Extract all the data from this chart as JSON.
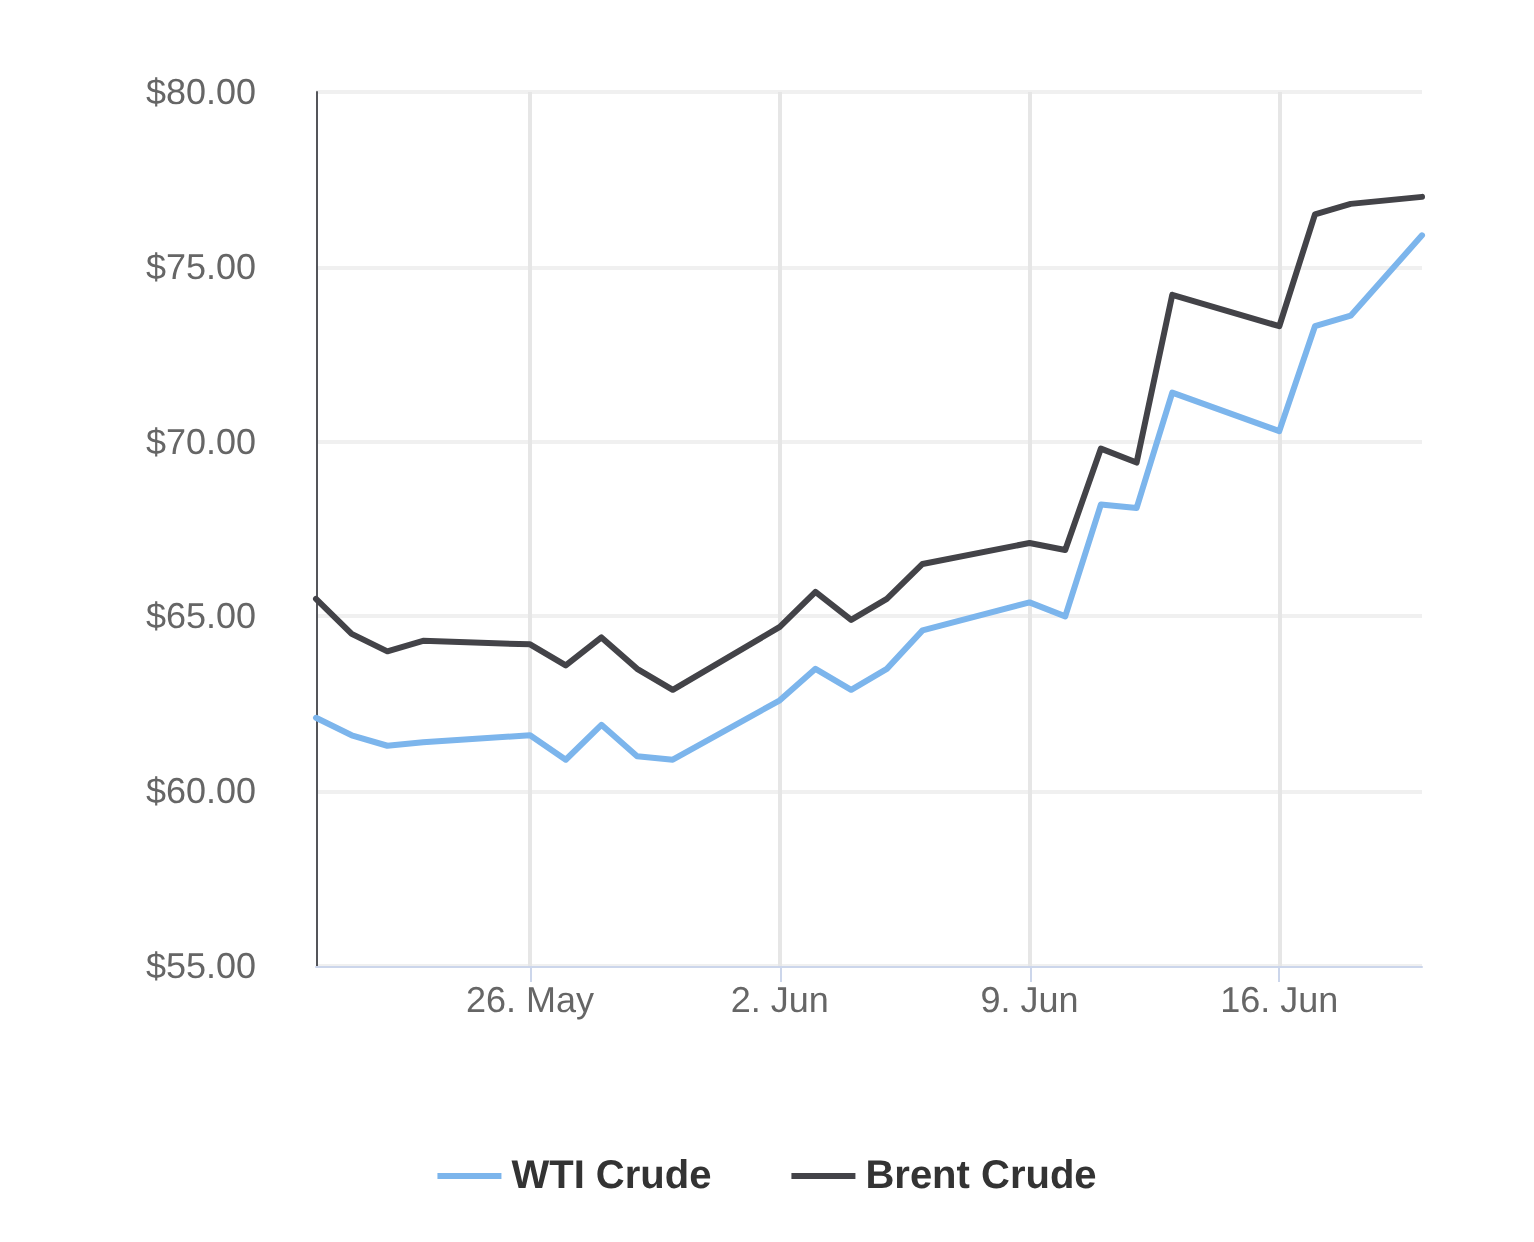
{
  "chart_data": {
    "type": "line",
    "x": [
      "--05-20",
      "--05-21",
      "--05-22",
      "--05-23",
      "--05-26",
      "--05-27",
      "--05-28",
      "--05-29",
      "--05-30",
      "--06-02",
      "--06-03",
      "--06-04",
      "--06-05",
      "--06-06",
      "--06-09",
      "--06-10",
      "--06-11",
      "--06-12",
      "--06-13",
      "--06-16",
      "--06-17",
      "--06-18",
      "--06-20"
    ],
    "series": [
      {
        "name": "WTI Crude",
        "color": "#7cb5ec",
        "values": [
          62.1,
          61.6,
          61.3,
          61.4,
          61.6,
          60.9,
          61.9,
          61.0,
          60.9,
          62.6,
          63.5,
          62.9,
          63.5,
          64.6,
          65.4,
          65.0,
          68.2,
          68.1,
          71.4,
          70.3,
          73.3,
          73.6,
          75.9
        ]
      },
      {
        "name": "Brent Crude",
        "color": "#434348",
        "values": [
          65.5,
          64.5,
          64.0,
          64.3,
          64.2,
          63.6,
          64.4,
          63.5,
          62.9,
          64.7,
          65.7,
          64.9,
          65.5,
          66.5,
          67.1,
          66.9,
          69.8,
          69.4,
          74.2,
          73.3,
          76.5,
          76.8,
          77.0
        ]
      }
    ],
    "xlim": [
      "--05-20",
      "--06-20"
    ],
    "xticks": [
      {
        "value": "--05-26",
        "label": "26. May"
      },
      {
        "value": "--06-02",
        "label": "2. Jun"
      },
      {
        "value": "--06-09",
        "label": "9. Jun"
      },
      {
        "value": "--06-16",
        "label": "16. Jun"
      }
    ],
    "ylim": [
      55,
      80
    ],
    "yticks": [
      {
        "value": 55,
        "label": "$55.00"
      },
      {
        "value": 60,
        "label": "$60.00"
      },
      {
        "value": 65,
        "label": "$65.00"
      },
      {
        "value": 70,
        "label": "$70.00"
      },
      {
        "value": 75,
        "label": "$75.00"
      },
      {
        "value": 80,
        "label": "$80.00"
      }
    ],
    "grid": true,
    "legend": "bottom",
    "marker": "none",
    "line_style": "solid"
  }
}
